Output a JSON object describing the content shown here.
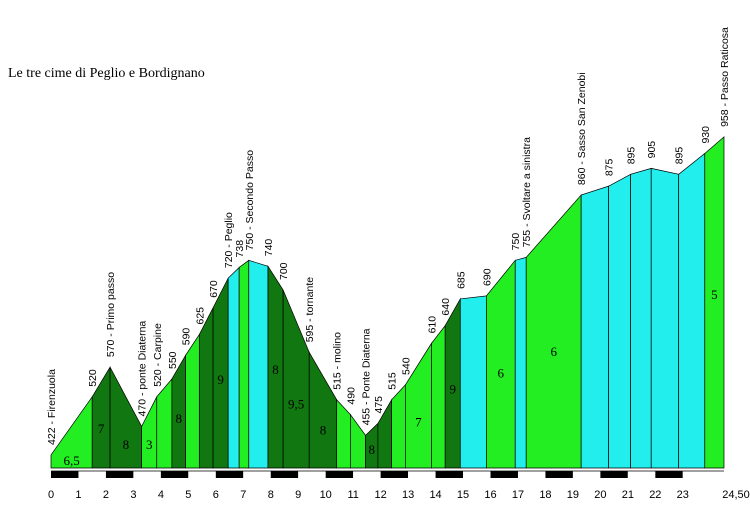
{
  "chart_data": {
    "type": "elevation-profile",
    "title": "Le tre cime di Peglio e Bordignano",
    "xlim": [
      0,
      24.5
    ],
    "ylim": [
      400,
      1000
    ],
    "xticks": [
      0,
      1,
      2,
      3,
      4,
      5,
      6,
      7,
      8,
      9,
      10,
      11,
      12,
      13,
      14,
      15,
      16,
      17,
      18,
      19,
      20,
      21,
      22,
      23,
      {
        "value": 24.5,
        "label": "24,50"
      }
    ],
    "points": [
      {
        "km": 0,
        "elevation": 422,
        "label": "422 - Firenzuola"
      },
      {
        "km": 1.5,
        "elevation": 520
      },
      {
        "km": 2.15,
        "elevation": 570,
        "label": "570 - Primo passo"
      },
      {
        "km": 3.3,
        "elevation": 470,
        "label": "470 - ponte Diaterna"
      },
      {
        "km": 3.85,
        "elevation": 520,
        "label": "520 - Carpine"
      },
      {
        "km": 4.4,
        "elevation": 550
      },
      {
        "km": 4.9,
        "elevation": 590
      },
      {
        "km": 5.4,
        "elevation": 625
      },
      {
        "km": 5.9,
        "elevation": 670
      },
      {
        "km": 6.45,
        "elevation": 720,
        "label": "720 - Peglio"
      },
      {
        "km": 6.85,
        "elevation": 738
      },
      {
        "km": 7.2,
        "elevation": 750,
        "label": "750 - Secondo Passo"
      },
      {
        "km": 7.9,
        "elevation": 740
      },
      {
        "km": 8.45,
        "elevation": 700
      },
      {
        "km": 9.4,
        "elevation": 595,
        "label": "595 - tornante"
      },
      {
        "km": 10.4,
        "elevation": 515,
        "label": "515 - molino"
      },
      {
        "km": 10.9,
        "elevation": 490
      },
      {
        "km": 11.45,
        "elevation": 455,
        "label": "455 - Ponte Diaterna"
      },
      {
        "km": 11.9,
        "elevation": 475
      },
      {
        "km": 12.4,
        "elevation": 515
      },
      {
        "km": 12.9,
        "elevation": 540
      },
      {
        "km": 13.85,
        "elevation": 610
      },
      {
        "km": 14.35,
        "elevation": 640
      },
      {
        "km": 14.9,
        "elevation": 685
      },
      {
        "km": 15.85,
        "elevation": 690
      },
      {
        "km": 16.9,
        "elevation": 750
      },
      {
        "km": 17.3,
        "elevation": 755,
        "label": "755 - Svoltare a sinistra"
      },
      {
        "km": 19.3,
        "elevation": 860,
        "label": "860 - Sasso San Zenobi"
      },
      {
        "km": 20.3,
        "elevation": 875
      },
      {
        "km": 21.1,
        "elevation": 895
      },
      {
        "km": 21.85,
        "elevation": 905
      },
      {
        "km": 22.85,
        "elevation": 895
      },
      {
        "km": 23.8,
        "elevation": 930
      },
      {
        "km": 24.5,
        "elevation": 958,
        "label": "958 - Passo Raticosa"
      }
    ],
    "segments": [
      {
        "color": "#22ee22",
        "grade": {
          "value": 6.5,
          "label": "6,5"
        }
      },
      {
        "color": "#117711",
        "grade": 7
      },
      {
        "color": "#117711",
        "grade": 8
      },
      {
        "color": "#22ee22",
        "grade": 3
      },
      {
        "color": "#22ee22"
      },
      {
        "color": "#117711",
        "grade": 8
      },
      {
        "color": "#22ee22"
      },
      {
        "color": "#117711"
      },
      {
        "color": "#117711",
        "grade": 9
      },
      {
        "color": "#22eeee"
      },
      {
        "color": "#22ee22"
      },
      {
        "color": "#22eeee"
      },
      {
        "color": "#117711",
        "grade": 8
      },
      {
        "color": "#117711",
        "grade": {
          "value": 9.5,
          "label": "9,5"
        }
      },
      {
        "color": "#117711",
        "grade": 8
      },
      {
        "color": "#22ee22"
      },
      {
        "color": "#22ee22"
      },
      {
        "color": "#117711",
        "grade": 8
      },
      {
        "color": "#117711"
      },
      {
        "color": "#22ee22"
      },
      {
        "color": "#22ee22",
        "grade": 7
      },
      {
        "color": "#22ee22"
      },
      {
        "color": "#117711",
        "grade": 9
      },
      {
        "color": "#22eeee"
      },
      {
        "color": "#22ee22",
        "grade": 6
      },
      {
        "color": "#22eeee"
      },
      {
        "color": "#22ee22",
        "grade": 6
      },
      {
        "color": "#22eeee"
      },
      {
        "color": "#22eeee"
      },
      {
        "color": "#22eeee"
      },
      {
        "color": "#22eeee"
      },
      {
        "color": "#22eeee"
      },
      {
        "color": "#22ee22",
        "grade": 5
      }
    ]
  }
}
